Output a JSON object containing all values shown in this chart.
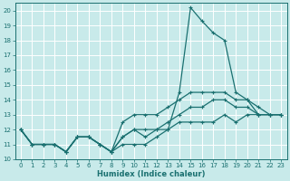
{
  "title": "",
  "xlabel": "Humidex (Indice chaleur)",
  "ylabel": "",
  "bg_color": "#c8eaea",
  "grid_color": "#aad4d4",
  "line_color": "#1a7070",
  "xlim": [
    -0.5,
    23.5
  ],
  "ylim": [
    10,
    20.5
  ],
  "xticks": [
    0,
    1,
    2,
    3,
    4,
    5,
    6,
    7,
    8,
    9,
    10,
    11,
    12,
    13,
    14,
    15,
    16,
    17,
    18,
    19,
    20,
    21,
    22,
    23
  ],
  "yticks": [
    10,
    11,
    12,
    13,
    14,
    15,
    16,
    17,
    18,
    19,
    20
  ],
  "series": [
    [
      12,
      11,
      11,
      11,
      10.5,
      11.5,
      11.5,
      11,
      10.5,
      11,
      11,
      11,
      11.5,
      12,
      14.5,
      20.2,
      19.3,
      18.5,
      18,
      14.5,
      14,
      13,
      13,
      13
    ],
    [
      12,
      11,
      11,
      11,
      10.5,
      11.5,
      11.5,
      11,
      10.5,
      12.5,
      13,
      13,
      13,
      13.5,
      14,
      14.5,
      14.5,
      14.5,
      14.5,
      14,
      14,
      13.5,
      13,
      13
    ],
    [
      12,
      11,
      11,
      11,
      10.5,
      11.5,
      11.5,
      11,
      10.5,
      11.5,
      12,
      12,
      12,
      12.5,
      13,
      13.5,
      13.5,
      14,
      14,
      13.5,
      13.5,
      13,
      13,
      13
    ],
    [
      12,
      11,
      11,
      11,
      10.5,
      11.5,
      11.5,
      11,
      10.5,
      11.5,
      12,
      11.5,
      12,
      12,
      12.5,
      12.5,
      12.5,
      12.5,
      13,
      12.5,
      13,
      13,
      13,
      13
    ]
  ]
}
